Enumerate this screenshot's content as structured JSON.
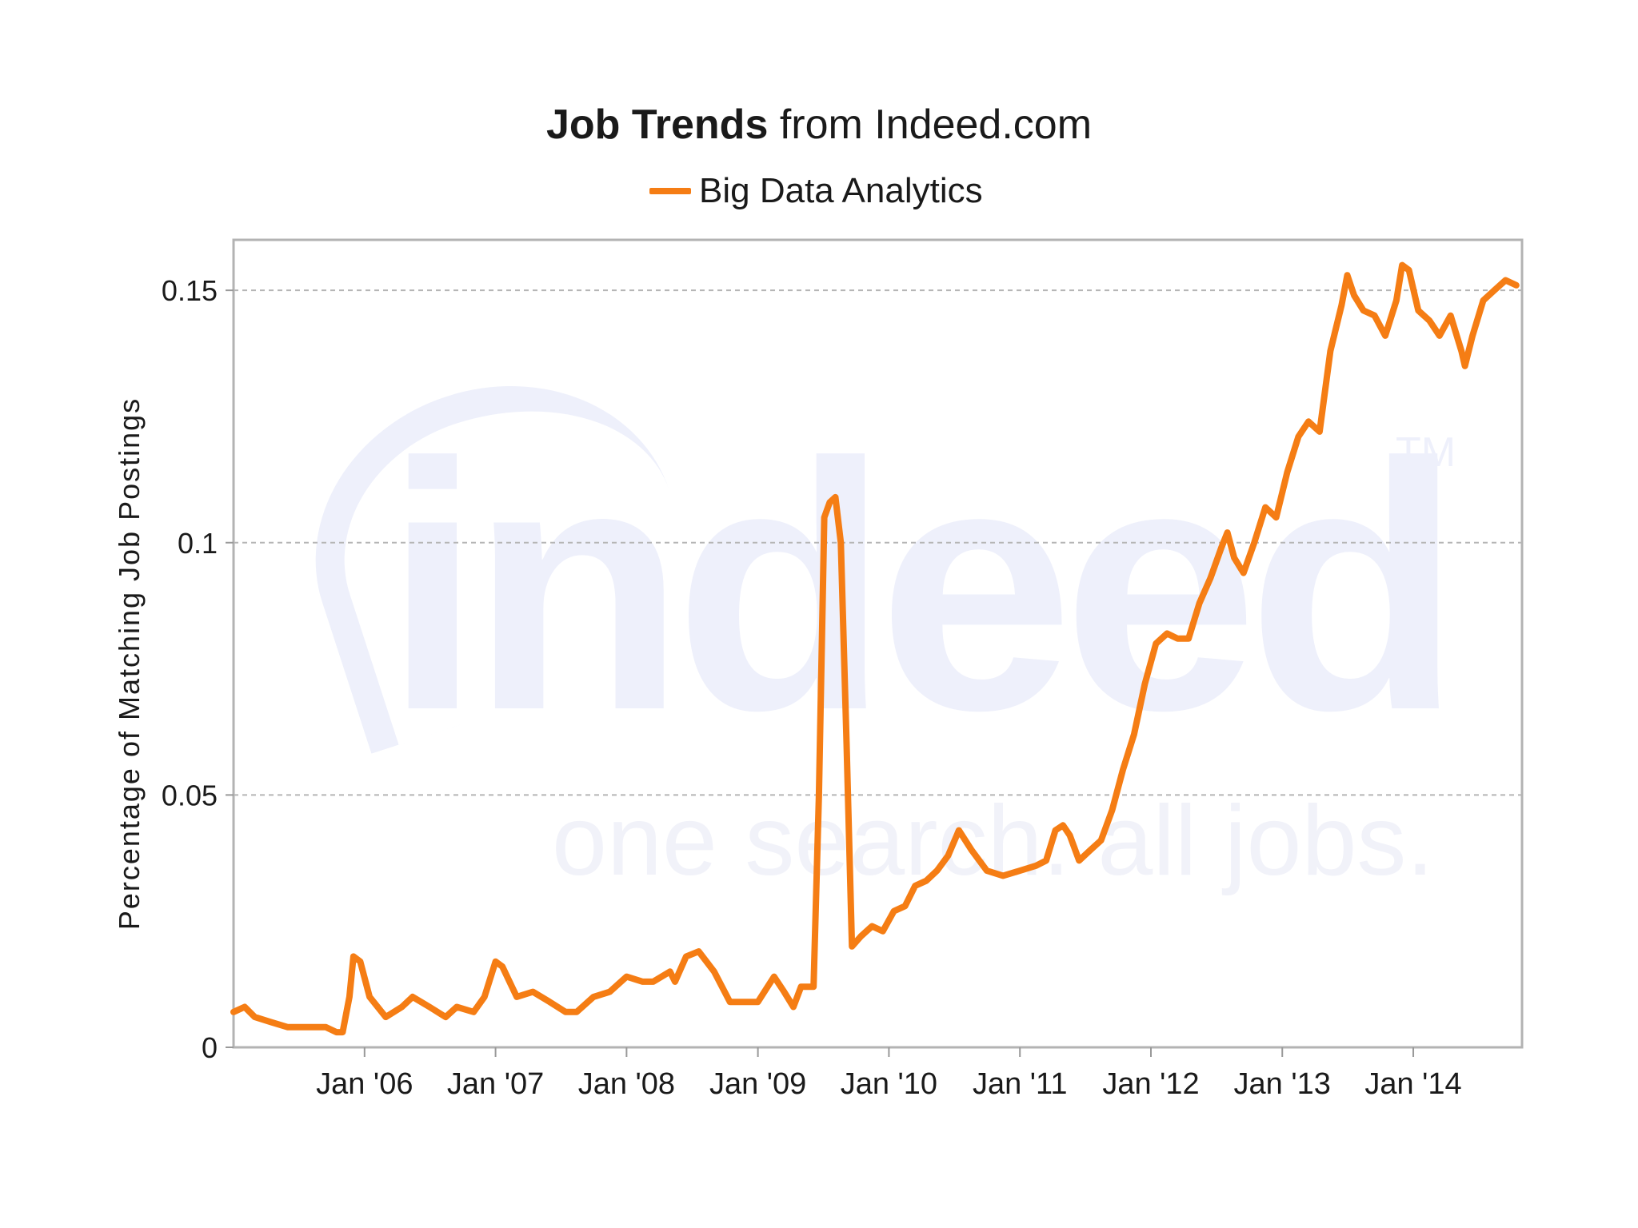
{
  "title": {
    "bold": "Job Trends",
    "rest": "from Indeed.com"
  },
  "watermark": {
    "brand": "indeed",
    "tagline": "one search. all jobs.",
    "tm": "TM"
  },
  "chart_data": {
    "type": "line",
    "xlabel": "",
    "ylabel": "Percentage of Matching Job Postings",
    "ylim": [
      0,
      0.16
    ],
    "yticks": [
      {
        "value": 0,
        "label": "0"
      },
      {
        "value": 0.05,
        "label": "0.05"
      },
      {
        "value": 0.1,
        "label": "0.1"
      },
      {
        "value": 0.15,
        "label": "0.15"
      }
    ],
    "xlim": [
      "2005-01-01",
      "2014-10-31"
    ],
    "xticks": [
      {
        "date": "2006-01-01",
        "label": "Jan '06"
      },
      {
        "date": "2007-01-01",
        "label": "Jan '07"
      },
      {
        "date": "2008-01-01",
        "label": "Jan '08"
      },
      {
        "date": "2009-01-01",
        "label": "Jan '09"
      },
      {
        "date": "2010-01-01",
        "label": "Jan '10"
      },
      {
        "date": "2011-01-01",
        "label": "Jan '11"
      },
      {
        "date": "2012-01-01",
        "label": "Jan '12"
      },
      {
        "date": "2013-01-01",
        "label": "Jan '13"
      },
      {
        "date": "2014-01-01",
        "label": "Jan '14"
      }
    ],
    "grid": {
      "horizontal": true,
      "style": "dashed",
      "at": [
        0.05,
        0.1,
        0.15
      ]
    },
    "legend_position": "top-center",
    "series": [
      {
        "name": "Big Data Analytics",
        "color": "#f57d14",
        "points": [
          [
            "2005-01-01",
            0.007
          ],
          [
            "2005-02-01",
            0.008
          ],
          [
            "2005-03-01",
            0.006
          ],
          [
            "2005-04-15",
            0.005
          ],
          [
            "2005-06-01",
            0.004
          ],
          [
            "2005-08-01",
            0.004
          ],
          [
            "2005-09-15",
            0.004
          ],
          [
            "2005-10-15",
            0.003
          ],
          [
            "2005-11-01",
            0.003
          ],
          [
            "2005-11-20",
            0.01
          ],
          [
            "2005-12-01",
            0.018
          ],
          [
            "2005-12-20",
            0.017
          ],
          [
            "2006-01-15",
            0.01
          ],
          [
            "2006-03-01",
            0.006
          ],
          [
            "2006-04-15",
            0.008
          ],
          [
            "2006-05-15",
            0.01
          ],
          [
            "2006-07-01",
            0.008
          ],
          [
            "2006-08-15",
            0.006
          ],
          [
            "2006-09-15",
            0.008
          ],
          [
            "2006-11-01",
            0.007
          ],
          [
            "2006-12-01",
            0.01
          ],
          [
            "2007-01-01",
            0.017
          ],
          [
            "2007-01-20",
            0.016
          ],
          [
            "2007-03-01",
            0.01
          ],
          [
            "2007-04-15",
            0.011
          ],
          [
            "2007-06-01",
            0.009
          ],
          [
            "2007-07-15",
            0.007
          ],
          [
            "2007-08-15",
            0.007
          ],
          [
            "2007-10-01",
            0.01
          ],
          [
            "2007-11-15",
            0.011
          ],
          [
            "2008-01-01",
            0.014
          ],
          [
            "2008-02-15",
            0.013
          ],
          [
            "2008-03-15",
            0.013
          ],
          [
            "2008-05-01",
            0.015
          ],
          [
            "2008-05-15",
            0.013
          ],
          [
            "2008-06-15",
            0.018
          ],
          [
            "2008-07-20",
            0.019
          ],
          [
            "2008-09-01",
            0.015
          ],
          [
            "2008-10-15",
            0.009
          ],
          [
            "2008-11-15",
            0.009
          ],
          [
            "2009-01-01",
            0.009
          ],
          [
            "2009-02-15",
            0.014
          ],
          [
            "2009-03-15",
            0.011
          ],
          [
            "2009-04-10",
            0.008
          ],
          [
            "2009-05-01",
            0.012
          ],
          [
            "2009-05-20",
            0.012
          ],
          [
            "2009-06-05",
            0.012
          ],
          [
            "2009-06-20",
            0.05
          ],
          [
            "2009-07-05",
            0.105
          ],
          [
            "2009-07-20",
            0.108
          ],
          [
            "2009-08-05",
            0.109
          ],
          [
            "2009-08-20",
            0.1
          ],
          [
            "2009-09-05",
            0.06
          ],
          [
            "2009-09-20",
            0.02
          ],
          [
            "2009-10-15",
            0.022
          ],
          [
            "2009-11-15",
            0.024
          ],
          [
            "2009-12-15",
            0.023
          ],
          [
            "2010-01-15",
            0.027
          ],
          [
            "2010-02-15",
            0.028
          ],
          [
            "2010-03-15",
            0.032
          ],
          [
            "2010-04-15",
            0.033
          ],
          [
            "2010-05-15",
            0.035
          ],
          [
            "2010-06-15",
            0.038
          ],
          [
            "2010-07-15",
            0.043
          ],
          [
            "2010-08-20",
            0.039
          ],
          [
            "2010-10-01",
            0.035
          ],
          [
            "2010-11-15",
            0.034
          ],
          [
            "2011-01-01",
            0.035
          ],
          [
            "2011-02-15",
            0.036
          ],
          [
            "2011-03-15",
            0.037
          ],
          [
            "2011-04-10",
            0.043
          ],
          [
            "2011-05-01",
            0.044
          ],
          [
            "2011-05-20",
            0.042
          ],
          [
            "2011-06-15",
            0.037
          ],
          [
            "2011-07-15",
            0.039
          ],
          [
            "2011-08-15",
            0.041
          ],
          [
            "2011-09-15",
            0.047
          ],
          [
            "2011-10-15",
            0.055
          ],
          [
            "2011-11-15",
            0.062
          ],
          [
            "2011-12-15",
            0.072
          ],
          [
            "2012-01-15",
            0.08
          ],
          [
            "2012-02-15",
            0.082
          ],
          [
            "2012-03-15",
            0.081
          ],
          [
            "2012-04-15",
            0.081
          ],
          [
            "2012-05-15",
            0.088
          ],
          [
            "2012-06-15",
            0.093
          ],
          [
            "2012-07-15",
            0.099
          ],
          [
            "2012-08-01",
            0.102
          ],
          [
            "2012-08-20",
            0.097
          ],
          [
            "2012-09-15",
            0.094
          ],
          [
            "2012-10-15",
            0.1
          ],
          [
            "2012-11-15",
            0.107
          ],
          [
            "2012-12-15",
            0.105
          ],
          [
            "2013-01-15",
            0.114
          ],
          [
            "2013-02-15",
            0.121
          ],
          [
            "2013-03-15",
            0.124
          ],
          [
            "2013-04-15",
            0.122
          ],
          [
            "2013-05-15",
            0.138
          ],
          [
            "2013-06-15",
            0.147
          ],
          [
            "2013-07-01",
            0.153
          ],
          [
            "2013-07-20",
            0.149
          ],
          [
            "2013-08-15",
            0.146
          ],
          [
            "2013-09-15",
            0.145
          ],
          [
            "2013-10-15",
            0.141
          ],
          [
            "2013-11-15",
            0.148
          ],
          [
            "2013-12-01",
            0.155
          ],
          [
            "2013-12-20",
            0.154
          ],
          [
            "2014-01-15",
            0.146
          ],
          [
            "2014-02-15",
            0.144
          ],
          [
            "2014-03-15",
            0.141
          ],
          [
            "2014-04-15",
            0.145
          ],
          [
            "2014-05-15",
            0.138
          ],
          [
            "2014-05-25",
            0.135
          ],
          [
            "2014-06-15",
            0.141
          ],
          [
            "2014-07-15",
            0.148
          ],
          [
            "2014-08-15",
            0.15
          ],
          [
            "2014-09-15",
            0.152
          ],
          [
            "2014-10-15",
            0.151
          ]
        ]
      }
    ]
  }
}
